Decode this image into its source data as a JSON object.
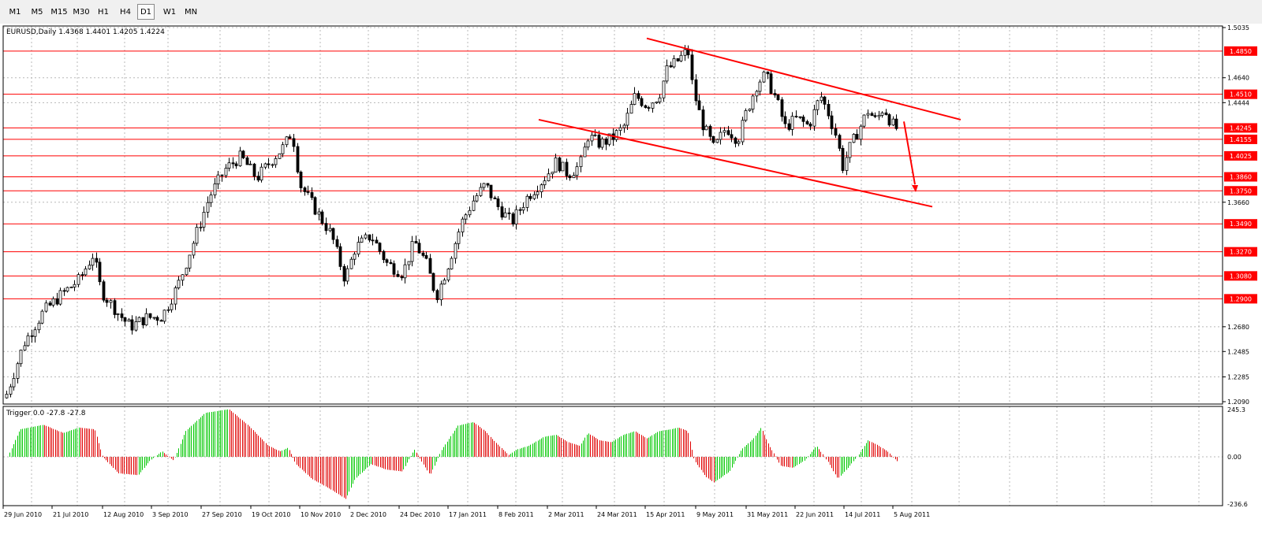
{
  "toolbar": {
    "timeframes": [
      {
        "label": "M1",
        "active": false
      },
      {
        "label": "M5",
        "active": false
      },
      {
        "label": "M15",
        "active": false
      },
      {
        "label": "M30",
        "active": false
      },
      {
        "label": "H1",
        "active": false
      },
      {
        "label": "H4",
        "active": false
      },
      {
        "label": "D1",
        "active": true
      },
      {
        "label": "W1",
        "active": false
      },
      {
        "label": "MN",
        "active": false
      }
    ]
  },
  "main_chart": {
    "info": "EURUSD,Daily  1.4368 1.4401 1.4205 1.4224",
    "price_ticks": [
      "1.5035",
      "1.4640",
      "1.4444",
      "1.3660",
      "1.2680",
      "1.2485",
      "1.2285",
      "1.2090"
    ],
    "levels": [
      {
        "label": "1.4850",
        "value": 1.485
      },
      {
        "label": "1.4510",
        "value": 1.451
      },
      {
        "label": "1.4245",
        "value": 1.4245
      },
      {
        "label": "1.4155",
        "value": 1.4155
      },
      {
        "label": "1.4025",
        "value": 1.4025
      },
      {
        "label": "1.3860",
        "value": 1.386
      },
      {
        "label": "1.3750",
        "value": 1.375
      },
      {
        "label": "1.3490",
        "value": 1.349
      },
      {
        "label": "1.3270",
        "value": 1.327
      },
      {
        "label": "1.3080",
        "value": 1.308
      },
      {
        "label": "1.2900",
        "value": 1.29
      }
    ],
    "colors": {
      "level_line": "#ff0000",
      "bull_candle": "#ffffff",
      "bear_candle": "#000000",
      "osc_pos": "#00c800",
      "osc_neg": "#e00000"
    }
  },
  "indicator": {
    "info": "Trigger 0.0 -27.8 -27.8",
    "ticks": [
      "245.3",
      "0.00",
      "-236.6"
    ]
  },
  "time_axis": {
    "labels": [
      "29 Jun 2010",
      "21 Jul 2010",
      "12 Aug 2010",
      "3 Sep 2010",
      "27 Sep 2010",
      "19 Oct 2010",
      "10 Nov 2010",
      "2 Dec 2010",
      "24 Dec 2010",
      "17 Jan 2011",
      "8 Feb 2011",
      "2 Mar 2011",
      "24 Mar 2011",
      "15 Apr 2011",
      "9 May 2011",
      "31 May 2011",
      "22 Jun 2011",
      "14 Jul 2011",
      "5 Aug 2011"
    ]
  },
  "chart_data": {
    "type": "candlestick",
    "symbol": "EURUSD",
    "timeframe": "Daily",
    "x": [
      "29 Jun 2010",
      "21 Jul 2010",
      "12 Aug 2010",
      "3 Sep 2010",
      "27 Sep 2010",
      "19 Oct 2010",
      "10 Nov 2010",
      "2 Dec 2010",
      "24 Dec 2010",
      "17 Jan 2011",
      "8 Feb 2011",
      "2 Mar 2011",
      "24 Mar 2011",
      "15 Apr 2011",
      "9 May 2011",
      "31 May 2011",
      "22 Jun 2011",
      "14 Jul 2011",
      "5 Aug 2011"
    ],
    "close": [
      1.215,
      1.291,
      1.279,
      1.284,
      1.393,
      1.405,
      1.356,
      1.322,
      1.305,
      1.347,
      1.37,
      1.397,
      1.412,
      1.478,
      1.43,
      1.447,
      1.44,
      1.41,
      1.422
    ],
    "last_bar": {
      "open": 1.4368,
      "high": 1.4401,
      "low": 1.4205,
      "close": 1.4224
    },
    "oscillator": {
      "name": "Trigger",
      "values": [
        150,
        160,
        -80,
        60,
        210,
        150,
        -150,
        -210,
        -80,
        170,
        -40,
        140,
        180,
        200,
        -90,
        130,
        -30,
        90,
        -27.8
      ],
      "ylim": [
        -236.6,
        245.3
      ]
    },
    "ylim": [
      1.209,
      1.5035
    ],
    "grid": true
  }
}
